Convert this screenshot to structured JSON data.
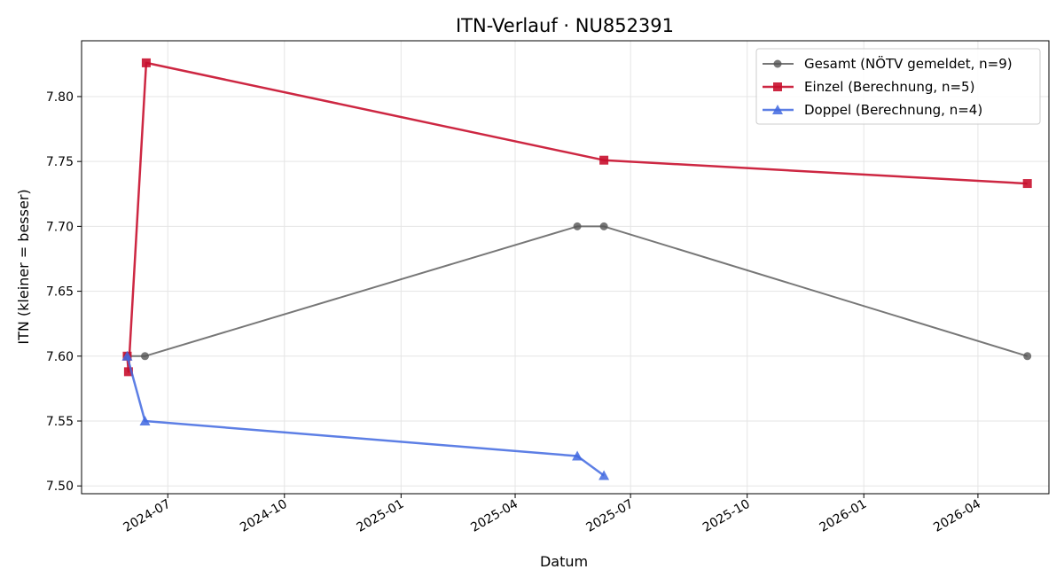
{
  "chart_data": {
    "type": "line",
    "title": "ITN-Verlauf · NU852391",
    "xlabel": "Datum",
    "ylabel": "ITN  (kleiner = besser)",
    "grid": true,
    "legend_position": "top-right",
    "xlim": [
      "2024-04-24",
      "2026-05-27"
    ],
    "ylim": [
      7.494,
      7.843
    ],
    "x_ticks": [
      "2024-07",
      "2024-10",
      "2025-01",
      "2025-04",
      "2025-07",
      "2025-10",
      "2026-01",
      "2026-04"
    ],
    "y_ticks": [
      "7.50",
      "7.55",
      "7.60",
      "7.65",
      "7.70",
      "7.75",
      "7.80"
    ],
    "series": [
      {
        "name": "Gesamt (NÖTV gemeldet, n=9)",
        "color": "#555555",
        "marker": "circle",
        "points": [
          {
            "x": "2024-05-30",
            "y": 7.6
          },
          {
            "x": "2024-06-13",
            "y": 7.6
          },
          {
            "x": "2025-05-20",
            "y": 7.7
          },
          {
            "x": "2025-06-10",
            "y": 7.7
          },
          {
            "x": "2026-05-10",
            "y": 7.6
          }
        ]
      },
      {
        "name": "Einzel (Berechnung, n=5)",
        "color": "#c8102e",
        "marker": "square",
        "points": [
          {
            "x": "2024-05-30",
            "y": 7.6
          },
          {
            "x": "2024-05-31",
            "y": 7.588
          },
          {
            "x": "2024-06-14",
            "y": 7.826
          },
          {
            "x": "2025-06-10",
            "y": 7.751
          },
          {
            "x": "2026-05-10",
            "y": 7.733
          }
        ]
      },
      {
        "name": "Doppel (Berechnung, n=4)",
        "color": "#4169e1",
        "marker": "triangle",
        "points": [
          {
            "x": "2024-05-30",
            "y": 7.6
          },
          {
            "x": "2024-06-13",
            "y": 7.55
          },
          {
            "x": "2025-05-20",
            "y": 7.523
          },
          {
            "x": "2025-06-10",
            "y": 7.508
          }
        ]
      }
    ]
  }
}
